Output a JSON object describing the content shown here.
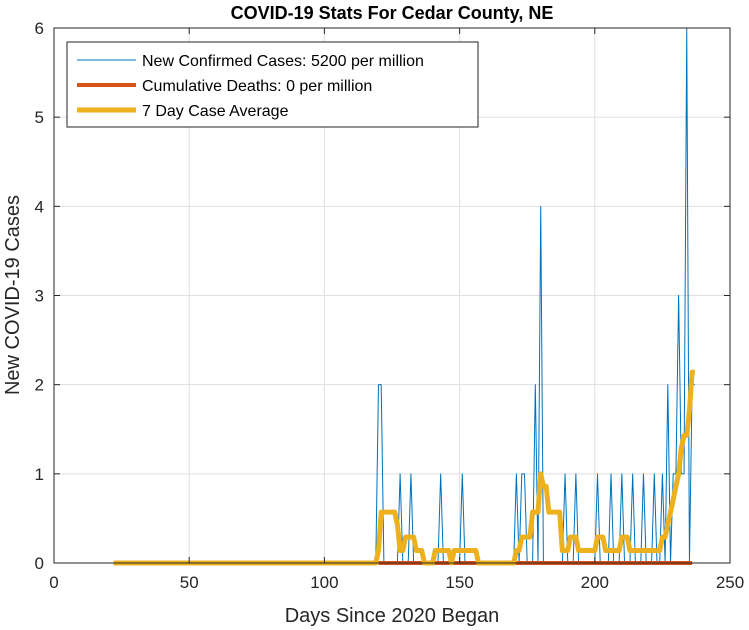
{
  "chart_data": {
    "type": "line",
    "title": "COVID-19 Stats For Cedar County, NE",
    "xlabel": "Days Since 2020 Began",
    "ylabel": "New COVID-19 Cases",
    "xlim": [
      0,
      250
    ],
    "ylim": [
      0,
      6
    ],
    "xticks": [
      0,
      50,
      100,
      150,
      200,
      250
    ],
    "yticks": [
      0,
      1,
      2,
      3,
      4,
      5,
      6
    ],
    "grid": true,
    "legend_position": "top-left",
    "series": [
      {
        "name": "New Confirmed Cases: 5200 per million",
        "color": "#0072BD",
        "width": 1,
        "x": [
          22,
          119,
          120,
          121,
          122,
          127,
          128,
          129,
          131,
          132,
          133,
          142,
          143,
          144,
          150,
          151,
          152,
          170,
          171,
          172,
          173,
          174,
          175,
          177,
          178,
          179,
          180,
          181,
          182,
          183,
          184,
          185,
          186,
          188,
          189,
          190,
          192,
          193,
          194,
          196,
          197,
          200,
          201,
          202,
          205,
          206,
          207,
          209,
          210,
          211,
          213,
          214,
          215,
          217,
          218,
          219,
          221,
          222,
          223,
          224,
          225,
          226,
          227,
          228,
          229,
          230,
          231,
          232,
          233,
          234,
          235,
          236,
          237
        ],
        "y": [
          0,
          0,
          2,
          2,
          0,
          0,
          1,
          0,
          0,
          1,
          0,
          0,
          1,
          0,
          0,
          1,
          0,
          0,
          1,
          0,
          1,
          1,
          0,
          0,
          2,
          0,
          4,
          0,
          0,
          0,
          0,
          0,
          0,
          0,
          1,
          0,
          0,
          1,
          0,
          0,
          0,
          0,
          1,
          0,
          0,
          1,
          0,
          0,
          1,
          0,
          0,
          1,
          0,
          0,
          1,
          0,
          0,
          1,
          0,
          0,
          1,
          0,
          2,
          0,
          1,
          1,
          3,
          1,
          1,
          6,
          0,
          2,
          2
        ]
      },
      {
        "name": "Cumulative Deaths: 0 per million",
        "color": "#D95319",
        "width": 4,
        "x": [
          120,
          236
        ],
        "y": [
          0,
          0
        ]
      },
      {
        "name": "7 Day Case Average",
        "color": "#EDB120",
        "width": 5,
        "x": [
          22,
          119,
          120,
          121,
          126,
          127,
          128,
          129,
          130,
          131,
          133,
          134,
          136,
          137,
          140,
          141,
          142,
          143,
          146,
          147,
          148,
          149,
          151,
          152,
          156,
          157,
          158,
          170,
          171,
          172,
          173,
          174,
          176,
          177,
          178,
          179,
          180,
          181,
          182,
          183,
          184,
          185,
          186,
          187,
          188,
          189,
          190,
          191,
          193,
          194,
          195,
          196,
          198,
          199,
          200,
          201,
          203,
          204,
          206,
          207,
          209,
          210,
          212,
          213,
          216,
          217,
          220,
          221,
          224,
          225,
          226,
          227,
          228,
          229,
          230,
          231,
          232,
          233,
          234,
          235,
          236,
          237
        ],
        "y": [
          0,
          0,
          0.14,
          0.57,
          0.57,
          0.43,
          0.14,
          0.14,
          0.29,
          0.29,
          0.29,
          0.14,
          0.14,
          0,
          0,
          0.14,
          0.14,
          0.14,
          0.14,
          0,
          0.14,
          0.14,
          0.14,
          0.14,
          0.14,
          0,
          0,
          0,
          0.14,
          0.14,
          0.29,
          0.29,
          0.29,
          0.57,
          0.57,
          0.57,
          1.0,
          0.86,
          0.86,
          0.57,
          0.57,
          0.57,
          0.57,
          0.57,
          0.14,
          0.14,
          0.14,
          0.29,
          0.29,
          0.14,
          0.14,
          0.14,
          0.14,
          0.14,
          0.14,
          0.29,
          0.29,
          0.14,
          0.14,
          0.14,
          0.14,
          0.29,
          0.29,
          0.14,
          0.14,
          0.14,
          0.14,
          0.14,
          0.14,
          0.29,
          0.29,
          0.43,
          0.57,
          0.71,
          0.86,
          1.0,
          1.29,
          1.43,
          1.43,
          1.71,
          2.14,
          2.14
        ]
      }
    ]
  }
}
